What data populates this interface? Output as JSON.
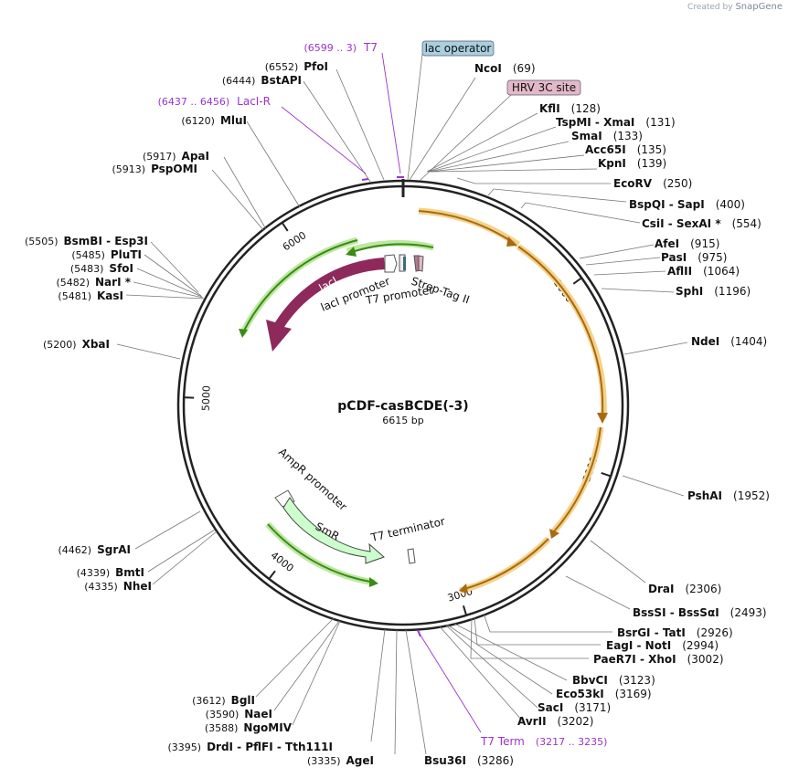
{
  "credit": {
    "prefix": "Created by",
    "brand": "SnapGene"
  },
  "plasmid": {
    "name": "pCDF-casBCDE(-3)",
    "size_label": "6615 bp",
    "length": 6615
  },
  "ticks": [
    1000,
    2000,
    3000,
    4000,
    5000,
    6000
  ],
  "enzymes": [
    {
      "name": "NcoI",
      "pos_label": "(69)"
    },
    {
      "name": "KflI",
      "pos_label": "(128)"
    },
    {
      "name": "TspMI  -  XmaI",
      "pos_label": "(131)"
    },
    {
      "name": "SmaI",
      "pos_label": "(133)"
    },
    {
      "name": "Acc65I",
      "pos_label": "(135)"
    },
    {
      "name": "KpnI",
      "pos_label": "(139)"
    },
    {
      "name": "EcoRV",
      "pos_label": "(250)"
    },
    {
      "name": "BspQI  -  SapI",
      "pos_label": "(400)"
    },
    {
      "name": "CsiI  -  SexAI *",
      "pos_label": "(554)"
    },
    {
      "name": "AfeI",
      "pos_label": "(915)"
    },
    {
      "name": "PasI",
      "pos_label": "(975)"
    },
    {
      "name": "AflII",
      "pos_label": "(1064)"
    },
    {
      "name": "SphI",
      "pos_label": "(1196)"
    },
    {
      "name": "NdeI",
      "pos_label": "(1404)"
    },
    {
      "name": "PshAI",
      "pos_label": "(1952)"
    },
    {
      "name": "DraI",
      "pos_label": "(2306)"
    },
    {
      "name": "BssSI  -  BssSαI",
      "pos_label": "(2493)"
    },
    {
      "name": "BsrGI  -  TatI",
      "pos_label": "(2926)"
    },
    {
      "name": "EagI  -  NotI",
      "pos_label": "(2994)"
    },
    {
      "name": "PaeR7I  -  XhoI",
      "pos_label": "(3002)"
    },
    {
      "name": "BbvCI",
      "pos_label": "(3123)"
    },
    {
      "name": "Eco53kI",
      "pos_label": "(3169)"
    },
    {
      "name": "SacI",
      "pos_label": "(3171)"
    },
    {
      "name": "AvrII",
      "pos_label": "(3202)"
    },
    {
      "name": "Bsu36I",
      "pos_label": "(3286)"
    },
    {
      "name": "AgeI",
      "pos_label": "(3335)"
    },
    {
      "name": "DrdI  -  PflFI  -  Tth111I",
      "pos_label": "(3395)"
    },
    {
      "name": "NgoMIV",
      "pos_label": "(3588)"
    },
    {
      "name": "NaeI",
      "pos_label": "(3590)"
    },
    {
      "name": "BglI",
      "pos_label": "(3612)"
    },
    {
      "name": "NheI",
      "pos_label": "(4335)"
    },
    {
      "name": "BmtI",
      "pos_label": "(4339)"
    },
    {
      "name": "SgrAI",
      "pos_label": "(4462)"
    },
    {
      "name": "XbaI",
      "pos_label": "(5200)"
    },
    {
      "name": "KasI",
      "pos_label": "(5481)"
    },
    {
      "name": "NarI *",
      "pos_label": "(5482)"
    },
    {
      "name": "SfoI",
      "pos_label": "(5483)"
    },
    {
      "name": "PluTI",
      "pos_label": "(5485)"
    },
    {
      "name": "BsmBI  -  Esp3I",
      "pos_label": "(5505)"
    },
    {
      "name": "PspOMI",
      "pos_label": "(5913)"
    },
    {
      "name": "ApaI",
      "pos_label": "(5917)"
    },
    {
      "name": "MluI",
      "pos_label": "(6120)"
    },
    {
      "name": "BstAPI",
      "pos_label": "(6444)"
    },
    {
      "name": "PfoI",
      "pos_label": "(6552)"
    }
  ],
  "features": [
    {
      "name": "T7",
      "range_label": "(6599 .. 3)"
    },
    {
      "name": "LacI-R",
      "range_label": "(6437 .. 6456)"
    },
    {
      "name": "T7 Term",
      "range_label": "(3217 .. 3235)"
    }
  ],
  "boxed": [
    {
      "name": "lac operator",
      "color": "#a9cfe0"
    },
    {
      "name": "HRV 3C site",
      "color": "#e3b8c8"
    }
  ],
  "feature_labels": {
    "laci": "lacI",
    "laci_promoter": "lacI promoter",
    "t7_promoter": "T7 promoter",
    "strep_tag": "Strep-Tag II",
    "ampr_promoter": "AmpR promoter",
    "smr": "SmR",
    "t7_terminator": "T7 terminator"
  },
  "colors": {
    "orf_arrow": "#a86a10",
    "orf_glow": "#f5d28a",
    "green_arrow": "#3a8a17",
    "green_glow": "#bde8a0",
    "laci": "#8e2a5b",
    "smr": "#ccffcc",
    "feature_text": "#9933cc"
  }
}
